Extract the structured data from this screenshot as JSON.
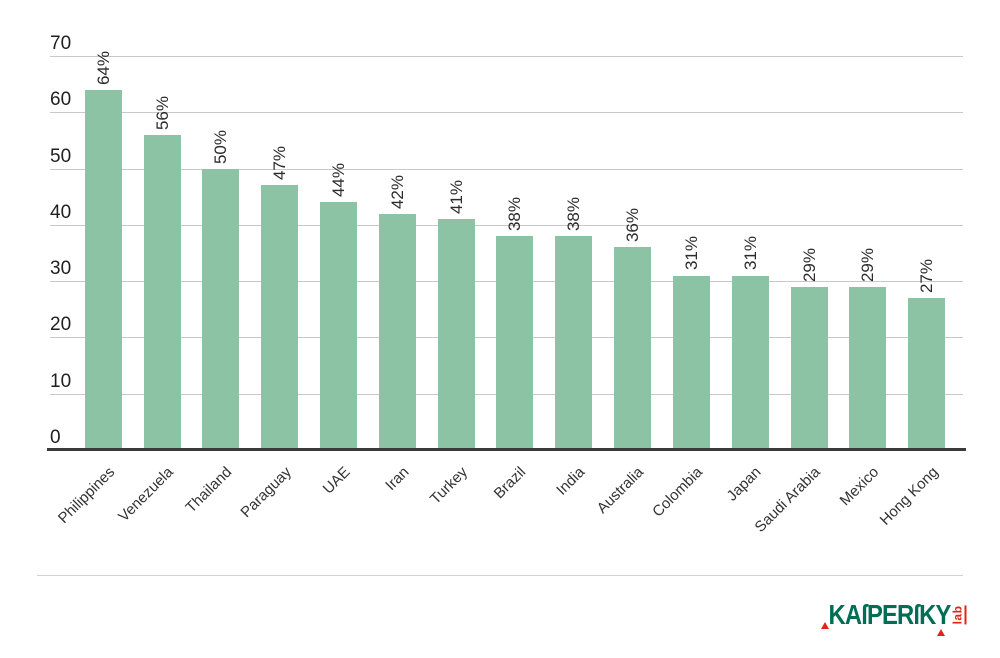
{
  "chart_data": {
    "type": "bar",
    "title": "",
    "xlabel": "",
    "ylabel": "",
    "categories": [
      "Philippines",
      "Venezuela",
      "Thailand",
      "Paraguay",
      "UAE",
      "Iran",
      "Turkey",
      "Brazil",
      "India",
      "Australia",
      "Colombia",
      "Japan",
      "Saudi Arabia",
      "Mexico",
      "Hong Kong"
    ],
    "values": [
      64,
      56,
      50,
      47,
      44,
      42,
      41,
      38,
      38,
      36,
      31,
      31,
      29,
      29,
      27
    ],
    "value_labels": [
      "64%",
      "56%",
      "50%",
      "47%",
      "44%",
      "42%",
      "41%",
      "38%",
      "38%",
      "36%",
      "31%",
      "31%",
      "29%",
      "29%",
      "27%"
    ],
    "ylim": [
      0,
      70
    ],
    "yticks": [
      0,
      10,
      20,
      30,
      40,
      50,
      60,
      70
    ],
    "grid": true,
    "legend": "none",
    "bar_color": "#8cc3a4",
    "gridline_color": "#c9c9c9",
    "axis_line_color": "#3a3a3a",
    "value_label_rotation": -90,
    "category_label_rotation": -45
  },
  "footer": {
    "brand": "KASPERSKY",
    "brand_display": "KAſPERſKY",
    "lab": "lab",
    "brand_color": "#006d55",
    "accent_red": "#e2231a"
  }
}
